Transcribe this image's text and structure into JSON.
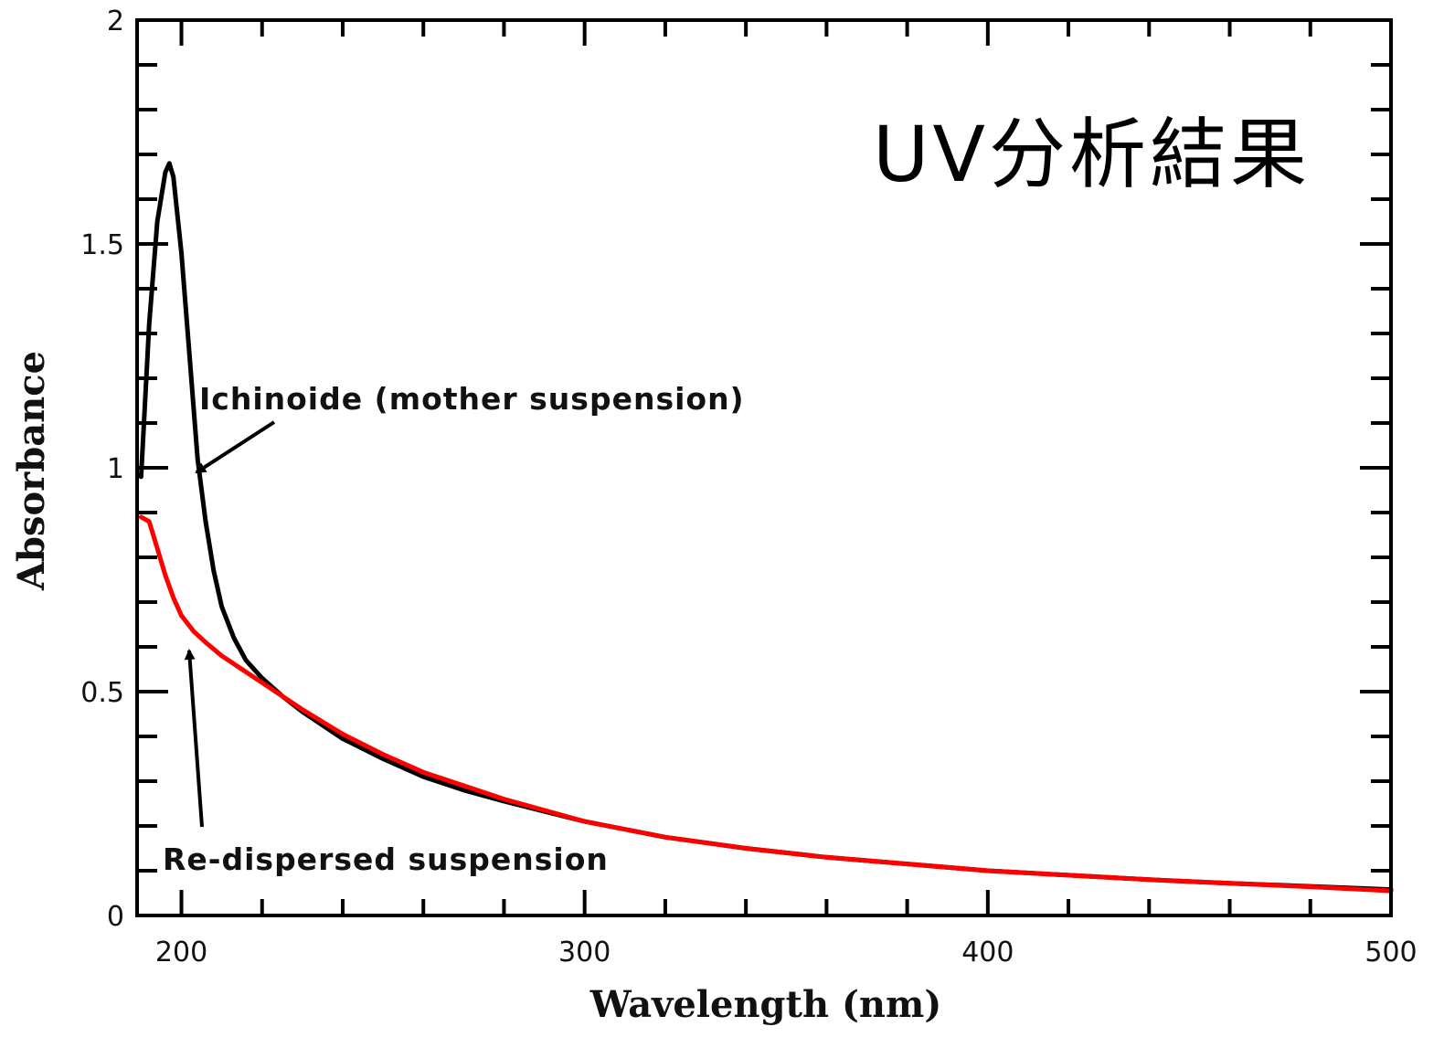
{
  "chart_data": {
    "type": "line",
    "title": "UV分析結果",
    "xlabel": "Wavelength (nm)",
    "ylabel": "Absorbance",
    "xlim": [
      189,
      500
    ],
    "ylim": [
      0,
      2
    ],
    "xticks": [
      200,
      300,
      400,
      500
    ],
    "xtick_labels": [
      "200",
      "300",
      "400",
      "500"
    ],
    "yticks": [
      0,
      0.5,
      1,
      1.5,
      2
    ],
    "ytick_labels": [
      "0",
      "0.5",
      "1",
      "1.5",
      "2"
    ],
    "grid": false,
    "series": [
      {
        "name": "Ichinoide (mother suspension)",
        "color": "#000000",
        "x": [
          190,
          192,
          194,
          196,
          197,
          198,
          200,
          202,
          204,
          206,
          208,
          210,
          213,
          216,
          220,
          225,
          230,
          240,
          250,
          260,
          270,
          280,
          300,
          320,
          340,
          360,
          380,
          400,
          420,
          440,
          460,
          480,
          500
        ],
        "y": [
          0.98,
          1.32,
          1.55,
          1.66,
          1.68,
          1.65,
          1.48,
          1.25,
          1.02,
          0.88,
          0.77,
          0.69,
          0.62,
          0.57,
          0.53,
          0.49,
          0.455,
          0.395,
          0.35,
          0.31,
          0.28,
          0.255,
          0.21,
          0.175,
          0.15,
          0.13,
          0.115,
          0.1,
          0.09,
          0.08,
          0.072,
          0.065,
          0.058
        ]
      },
      {
        "name": "Re-dispersed suspension",
        "color": "#ff0000",
        "x": [
          190,
          192,
          194,
          196,
          198,
          200,
          203,
          206,
          210,
          215,
          220,
          225,
          230,
          240,
          250,
          260,
          270,
          280,
          300,
          320,
          340,
          360,
          380,
          400,
          420,
          440,
          460,
          480,
          500
        ],
        "y": [
          0.89,
          0.88,
          0.82,
          0.76,
          0.71,
          0.67,
          0.635,
          0.61,
          0.58,
          0.55,
          0.52,
          0.49,
          0.46,
          0.405,
          0.36,
          0.32,
          0.29,
          0.26,
          0.21,
          0.175,
          0.15,
          0.13,
          0.115,
          0.1,
          0.09,
          0.08,
          0.072,
          0.064,
          0.055
        ]
      }
    ],
    "annotations": [
      {
        "text": "Ichinoide (mother suspension)",
        "series": "Ichinoide (mother suspension)",
        "points_to": [
          205,
          0.97
        ]
      },
      {
        "text": "Re-dispersed suspension",
        "series": "Re-dispersed suspension",
        "points_to": [
          203,
          0.62
        ]
      }
    ]
  }
}
